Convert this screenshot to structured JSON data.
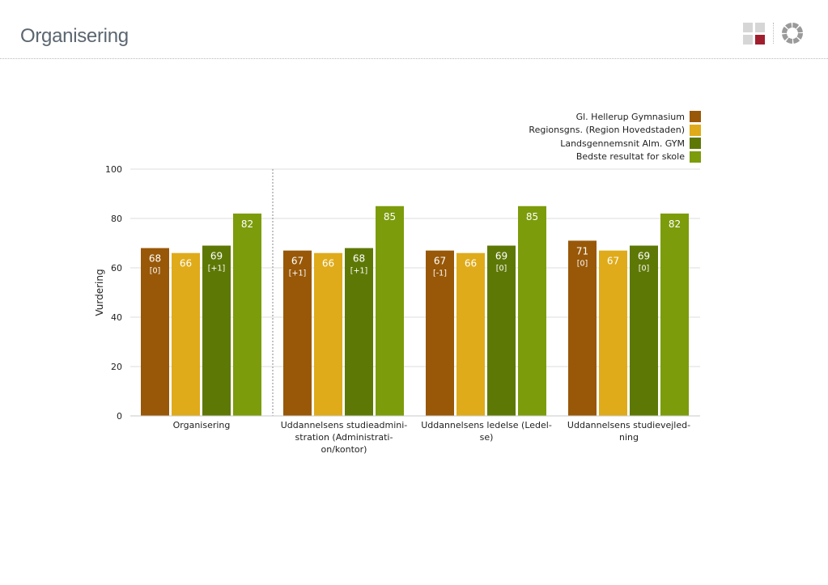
{
  "page": {
    "title": "Organisering"
  },
  "header_icons": [
    "grid-view-icon",
    "ring-chart-icon"
  ],
  "colors": {
    "gl_hellerup": "#985808",
    "region": "#dfab1a",
    "land": "#5e7806",
    "best": "#7c9c0b",
    "logo_accent": "#a01f2e"
  },
  "chart_data": {
    "type": "bar",
    "title": "",
    "xlabel": "",
    "ylabel": "Vurdering",
    "ylim": [
      0,
      100
    ],
    "yticks": [
      "0",
      "20",
      "40",
      "60",
      "80",
      "100"
    ],
    "grid": true,
    "legend_position": "top-right",
    "categories": [
      "Organisering",
      "Uddannelsens studieadmini-\nstration (Administrati-\non/kontor)",
      "Uddannelsens ledelse (Ledel-\nse)",
      "Uddannelsens studievejled-\nning"
    ],
    "series": [
      {
        "name": "Gl. Hellerup Gymnasium",
        "color": "#985808",
        "values": [
          68,
          67,
          67,
          71
        ],
        "labels": [
          "68",
          "67",
          "67",
          "71"
        ],
        "sublabels": [
          "[0]",
          "[+1]",
          "[-1]",
          "[0]"
        ]
      },
      {
        "name": "Regionsgns. (Region Hovedstaden)",
        "color": "#dfab1a",
        "values": [
          66,
          66,
          66,
          67
        ],
        "labels": [
          "66",
          "66",
          "66",
          "67"
        ],
        "sublabels": [
          "",
          "",
          "",
          ""
        ]
      },
      {
        "name": "Landsgennemsnit Alm. GYM",
        "color": "#5e7806",
        "values": [
          69,
          68,
          69,
          69
        ],
        "labels": [
          "69",
          "68",
          "69",
          "69"
        ],
        "sublabels": [
          "[+1]",
          "[+1]",
          "[0]",
          "[0]"
        ]
      },
      {
        "name": "Bedste resultat for skole",
        "color": "#7c9c0b",
        "values": [
          82,
          85,
          85,
          82
        ],
        "labels": [
          "82",
          "85",
          "85",
          "82"
        ],
        "sublabels": [
          "",
          "",
          "",
          ""
        ]
      }
    ]
  }
}
